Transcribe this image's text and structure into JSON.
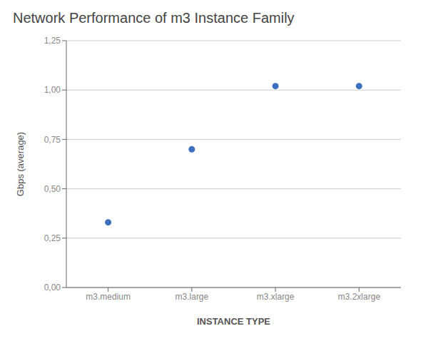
{
  "chart_data": {
    "type": "scatter",
    "title": "Network Performance of m3 Instance Family",
    "categories": [
      "m3.medium",
      "m3.large",
      "m3.xlarge",
      "m3.2xlarge"
    ],
    "values": [
      0.33,
      0.7,
      1.02,
      1.02
    ],
    "color": "#3d6ebf",
    "xlabel": "INSTANCE TYPE",
    "ylabel": "Gbps (average)",
    "ylim": [
      0,
      1.25
    ],
    "yticks": [
      {
        "value": 0.0,
        "label": "0,00"
      },
      {
        "value": 0.25,
        "label": "0,25"
      },
      {
        "value": 0.5,
        "label": "0,50"
      },
      {
        "value": 0.75,
        "label": "0,75"
      },
      {
        "value": 1.0,
        "label": "1,00"
      },
      {
        "value": 1.25,
        "label": "1,25"
      }
    ],
    "grid": true
  }
}
